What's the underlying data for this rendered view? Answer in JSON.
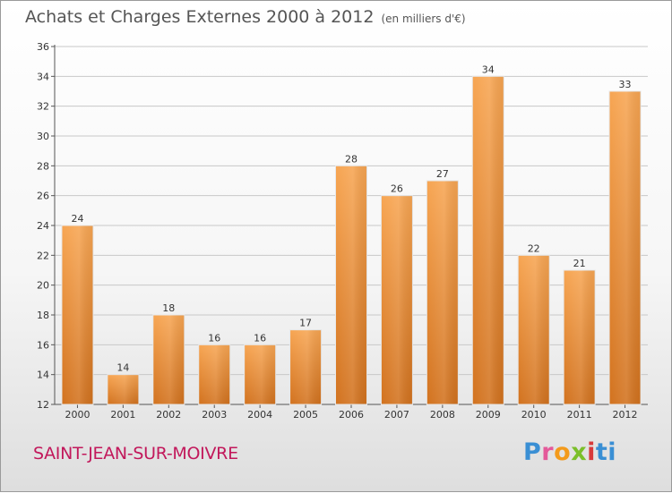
{
  "header": {
    "title": "Achats et Charges Externes 2000 à 2012",
    "unit": "(en milliers d'€)"
  },
  "footer": {
    "commune": "SAINT-JEAN-SUR-MOIVRE",
    "logo": "Proxiti"
  },
  "colors": {
    "bar_light": "#f7a552",
    "bar_dark": "#d2721e",
    "commune_text": "#c2185b",
    "grid": "#c8c8c8",
    "axis_text": "#333333"
  },
  "chart_data": {
    "type": "bar",
    "title": "Achats et Charges Externes 2000 à 2012",
    "subtitle": "(en milliers d'€)",
    "categories": [
      "2000",
      "2001",
      "2002",
      "2003",
      "2004",
      "2005",
      "2006",
      "2007",
      "2008",
      "2009",
      "2010",
      "2011",
      "2012"
    ],
    "values": [
      24,
      14,
      18,
      16,
      16,
      17,
      28,
      26,
      27,
      34,
      22,
      21,
      33
    ],
    "ylim": [
      12,
      36
    ],
    "yticks": [
      12,
      14,
      16,
      18,
      20,
      22,
      24,
      26,
      28,
      30,
      32,
      34,
      36
    ],
    "grid": true,
    "legend": "none"
  }
}
